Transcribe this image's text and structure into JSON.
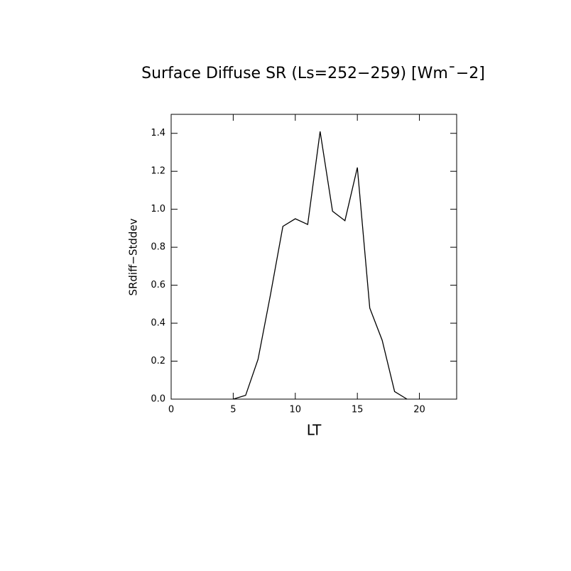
{
  "chart_data": {
    "type": "line",
    "title": "Surface Diffuse SR (Ls=252−259) [Wm¯−2]",
    "x_label": "LT",
    "y_label": "SRdiff−Stddev",
    "x": [
      5,
      6,
      7,
      8,
      9,
      10,
      11,
      12,
      13,
      14,
      15,
      16,
      17,
      18,
      19
    ],
    "series": [
      {
        "color": "#000000",
        "values": [
          0,
          0.02,
          0.21,
          0.55,
          0.91,
          0.95,
          0.92,
          1.41,
          0.99,
          0.94,
          1.22,
          0.48,
          0.31,
          0.04,
          0
        ]
      }
    ],
    "xlim": [
      0,
      23
    ],
    "xticks": [
      0,
      5,
      10,
      15,
      20
    ],
    "ylim": [
      0,
      1.5
    ],
    "yticks": [
      {
        "value": 0,
        "label": "0.0"
      },
      {
        "value": 0.2,
        "label": "0.2"
      },
      {
        "value": 0.4,
        "label": "0.4"
      },
      {
        "value": 0.6,
        "label": "0.6"
      },
      {
        "value": 0.8,
        "label": "0.8"
      },
      {
        "value": 1,
        "label": "1.0"
      },
      {
        "value": 1.2,
        "label": "1.2"
      },
      {
        "value": 1.4,
        "label": "1.4"
      }
    ],
    "grid": false
  }
}
